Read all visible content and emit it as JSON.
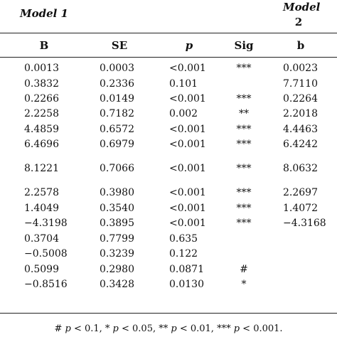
{
  "headers": {
    "model1": "Model 1",
    "model2_word": "Model",
    "model2_num": "2"
  },
  "columns": [
    "B",
    "SE",
    "p",
    "Sig",
    "b"
  ],
  "rows": [
    [
      "0.0013",
      "0.0003",
      "<0.001",
      "***",
      "0.0023"
    ],
    [
      "0.3832",
      "0.2336",
      "0.101",
      "",
      "7.7110"
    ],
    [
      "0.2266",
      "0.0149",
      "<0.001",
      "***",
      "0.2264"
    ],
    [
      "2.2258",
      "0.7182",
      "0.002",
      "**",
      "2.2018"
    ],
    [
      "4.4859",
      "0.6572",
      "<0.001",
      "***",
      "4.4463"
    ],
    [
      "6.4696",
      "0.6979",
      "<0.001",
      "***",
      "6.4242"
    ],
    [
      "8.1221",
      "0.7066",
      "<0.001",
      "***",
      "8.0632"
    ],
    [
      "2.2578",
      "0.3980",
      "<0.001",
      "***",
      "2.2697"
    ],
    [
      "1.4049",
      "0.3540",
      "<0.001",
      "***",
      "1.4072"
    ],
    [
      "−4.3198",
      "0.3895",
      "<0.001",
      "***",
      "−4.3168"
    ],
    [
      "0.3704",
      "0.7799",
      "0.635",
      "",
      ""
    ],
    [
      "−0.5008",
      "0.3239",
      "0.122",
      "",
      ""
    ],
    [
      "0.5099",
      "0.2980",
      "0.0871",
      "#",
      ""
    ],
    [
      "−0.8516",
      "0.3428",
      "0.0130",
      "*",
      ""
    ]
  ],
  "footnote": {
    "parts": [
      "# ",
      "p",
      " < 0.1, * ",
      "p",
      " < 0.05, ** ",
      "p",
      " < 0.01, *** ",
      "p",
      " < 0.001."
    ]
  }
}
